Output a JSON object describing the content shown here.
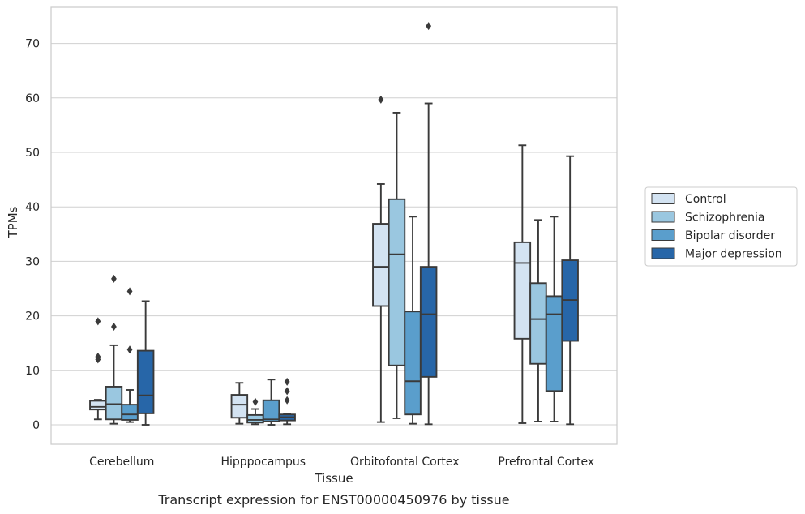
{
  "chart_data": {
    "type": "box",
    "caption": "Transcript expression for ENST00000450976 by tissue",
    "xlabel": "Tissue",
    "ylabel": "TPMs",
    "ylim": [
      -3.5,
      77
    ],
    "yticks": [
      0,
      10,
      20,
      30,
      40,
      50,
      60,
      70
    ],
    "grid": "horizontal",
    "legend_position": "right",
    "categories": [
      "Cerebellum",
      "Hipppocampus",
      "Orbitofontal Cortex",
      "Prefrontal Cortex"
    ],
    "series": [
      {
        "name": "Control",
        "color": "#d3e3f2",
        "boxes": [
          {
            "whisker_low": 1.0,
            "q1": 2.8,
            "median": 3.3,
            "q3": 4.4,
            "whisker_high": 4.6,
            "outliers": [
              12.0,
              12.5,
              19.0
            ]
          },
          {
            "whisker_low": 0.2,
            "q1": 1.3,
            "median": 3.7,
            "q3": 5.5,
            "whisker_high": 7.7,
            "outliers": []
          },
          {
            "whisker_low": 0.5,
            "q1": 21.8,
            "median": 29.0,
            "q3": 36.9,
            "whisker_high": 44.2,
            "outliers": [
              59.7
            ]
          },
          {
            "whisker_low": 0.3,
            "q1": 15.8,
            "median": 29.7,
            "q3": 33.5,
            "whisker_high": 51.3,
            "outliers": []
          }
        ]
      },
      {
        "name": "Schizophrenia",
        "color": "#9ac7e0",
        "boxes": [
          {
            "whisker_low": 0.2,
            "q1": 1.0,
            "median": 3.8,
            "q3": 7.0,
            "whisker_high": 14.6,
            "outliers": [
              18.0,
              26.8
            ]
          },
          {
            "whisker_low": 0.1,
            "q1": 0.4,
            "median": 0.9,
            "q3": 1.8,
            "whisker_high": 2.9,
            "outliers": [
              4.2
            ]
          },
          {
            "whisker_low": 1.2,
            "q1": 10.9,
            "median": 31.3,
            "q3": 41.4,
            "whisker_high": 57.3,
            "outliers": []
          },
          {
            "whisker_low": 0.6,
            "q1": 11.2,
            "median": 19.4,
            "q3": 26.0,
            "whisker_high": 37.6,
            "outliers": []
          }
        ]
      },
      {
        "name": "Bipolar disorder",
        "color": "#5a9ecc",
        "boxes": [
          {
            "whisker_low": 0.5,
            "q1": 0.9,
            "median": 1.9,
            "q3": 3.7,
            "whisker_high": 6.4,
            "outliers": [
              13.8,
              24.5
            ]
          },
          {
            "whisker_low": 0.0,
            "q1": 0.6,
            "median": 1.0,
            "q3": 4.5,
            "whisker_high": 8.3,
            "outliers": []
          },
          {
            "whisker_low": 0.2,
            "q1": 1.9,
            "median": 8.0,
            "q3": 20.8,
            "whisker_high": 38.2,
            "outliers": []
          },
          {
            "whisker_low": 0.6,
            "q1": 6.2,
            "median": 20.3,
            "q3": 23.6,
            "whisker_high": 38.2,
            "outliers": []
          }
        ]
      },
      {
        "name": "Major depression",
        "color": "#2766a8",
        "boxes": [
          {
            "whisker_low": 0.0,
            "q1": 2.1,
            "median": 5.4,
            "q3": 13.6,
            "whisker_high": 22.7,
            "outliers": []
          },
          {
            "whisker_low": 0.1,
            "q1": 0.8,
            "median": 1.4,
            "q3": 1.9,
            "whisker_high": 2.0,
            "outliers": [
              4.5,
              6.2,
              7.9
            ]
          },
          {
            "whisker_low": 0.1,
            "q1": 8.8,
            "median": 20.3,
            "q3": 29.0,
            "whisker_high": 59.0,
            "outliers": [
              73.2
            ]
          },
          {
            "whisker_low": 0.1,
            "q1": 15.4,
            "median": 22.9,
            "q3": 30.2,
            "whisker_high": 49.3,
            "outliers": []
          }
        ]
      }
    ]
  }
}
